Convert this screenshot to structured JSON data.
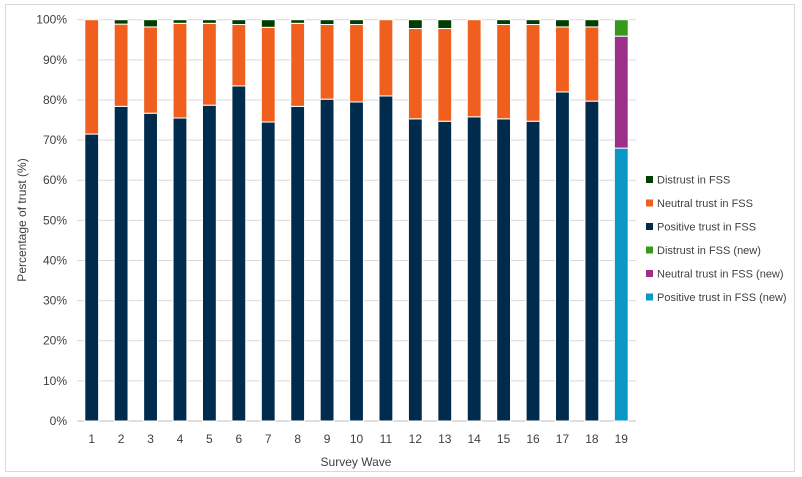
{
  "chart_data": {
    "type": "bar",
    "stacked": true,
    "xlabel": "Survey Wave",
    "ylabel": "Percentage of trust (%)",
    "ylim": [
      0,
      100
    ],
    "yticks": [
      "0%",
      "10%",
      "20%",
      "30%",
      "40%",
      "50%",
      "60%",
      "70%",
      "80%",
      "90%",
      "100%"
    ],
    "grid": true,
    "legend_position": "right",
    "categories": [
      "1",
      "2",
      "3",
      "4",
      "5",
      "6",
      "7",
      "8",
      "9",
      "10",
      "11",
      "12",
      "13",
      "14",
      "15",
      "16",
      "17",
      "18",
      "19"
    ],
    "series": [
      {
        "name": "Positive trust in FSS",
        "color": "#002b4d",
        "values": [
          71.5,
          78.4,
          76.7,
          75.5,
          78.7,
          83.5,
          74.5,
          78.4,
          80.2,
          79.5,
          81.0,
          75.3,
          74.7,
          75.8,
          75.3,
          74.7,
          82.0,
          79.7,
          null
        ]
      },
      {
        "name": "Neutral trust in FSS",
        "color": "#f05f1e",
        "values": [
          28.5,
          20.5,
          21.5,
          23.6,
          20.4,
          15.3,
          23.6,
          20.7,
          18.6,
          19.3,
          19.0,
          22.5,
          23.1,
          24.2,
          23.5,
          24.1,
          16.2,
          18.5,
          null
        ]
      },
      {
        "name": "Distrust in FSS",
        "color": "#003d00",
        "values": [
          0,
          1.1,
          1.8,
          0.9,
          0.9,
          1.2,
          1.9,
          0.9,
          1.2,
          1.2,
          0,
          2.2,
          2.2,
          0,
          1.2,
          1.2,
          1.8,
          1.8,
          null
        ]
      },
      {
        "name": "Positive trust in FSS (new)",
        "color": "#0b96c8",
        "values": [
          null,
          null,
          null,
          null,
          null,
          null,
          null,
          null,
          null,
          null,
          null,
          null,
          null,
          null,
          null,
          null,
          null,
          null,
          68.0
        ]
      },
      {
        "name": "Neutral trust in FSS (new)",
        "color": "#9c2f8a",
        "values": [
          null,
          null,
          null,
          null,
          null,
          null,
          null,
          null,
          null,
          null,
          null,
          null,
          null,
          null,
          null,
          null,
          null,
          null,
          27.9
        ]
      },
      {
        "name": "Distrust in FSS (new)",
        "color": "#359a1b",
        "values": [
          null,
          null,
          null,
          null,
          null,
          null,
          null,
          null,
          null,
          null,
          null,
          null,
          null,
          null,
          null,
          null,
          null,
          null,
          4.1
        ]
      }
    ],
    "legend_order": [
      "Distrust in FSS",
      "Neutral trust in FSS",
      "Positive trust in FSS",
      "Distrust in FSS (new)",
      "Neutral trust in FSS (new)",
      "Positive trust in FSS (new)"
    ]
  }
}
